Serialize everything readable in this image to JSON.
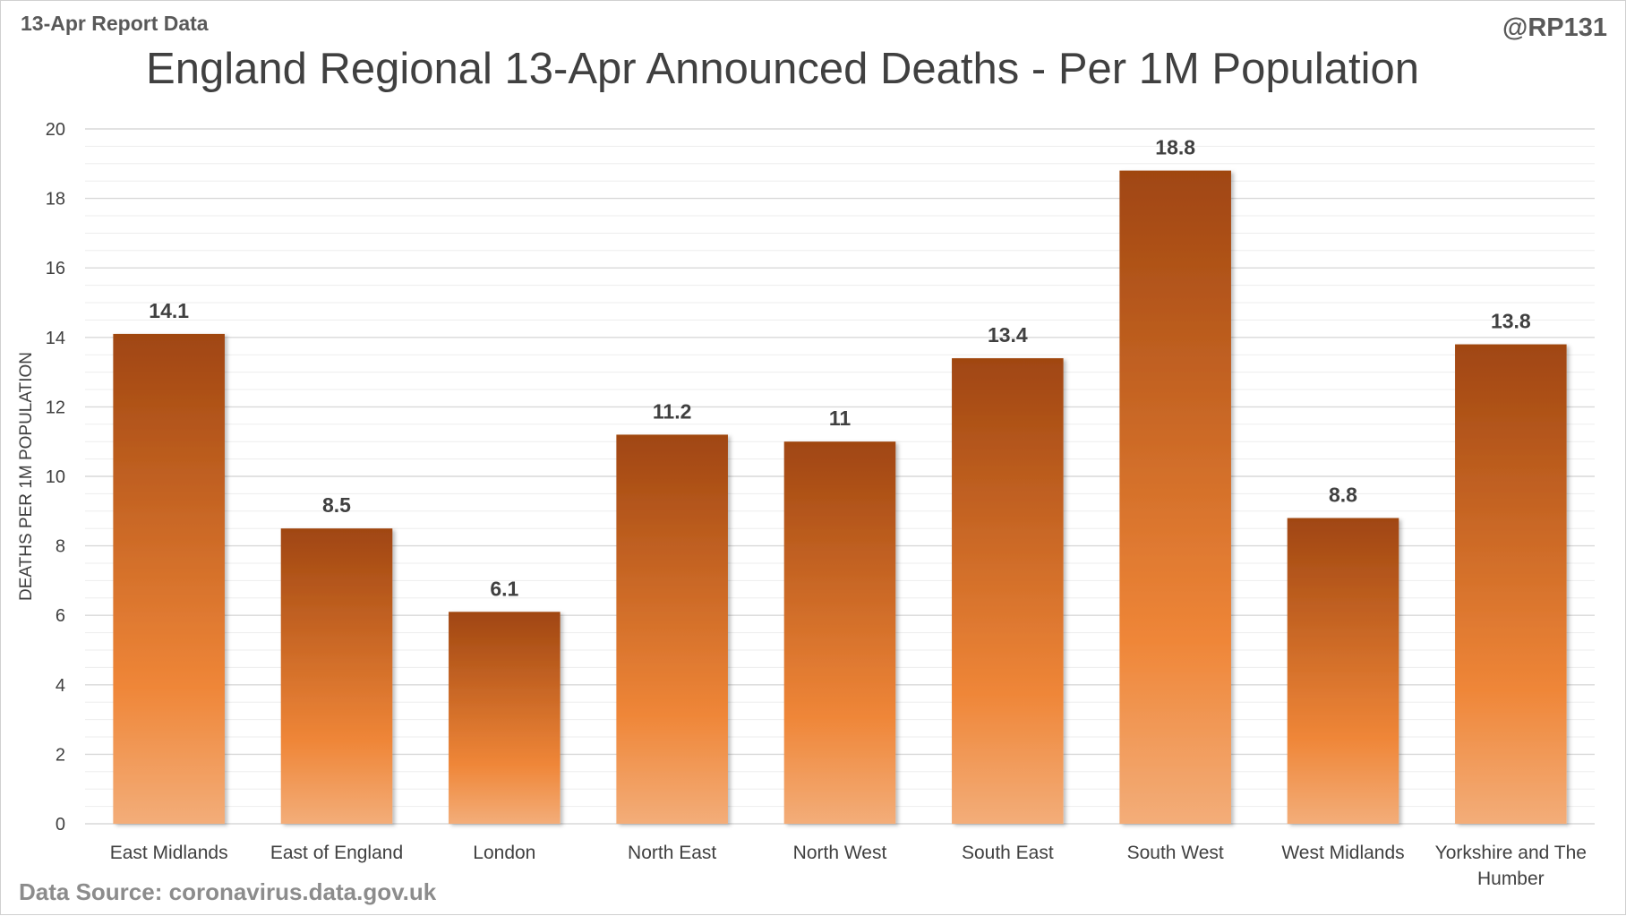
{
  "header": {
    "report_label": "13-Apr Report Data",
    "handle": "@RP131"
  },
  "footer": {
    "source": "Data Source: coronavirus.data.gov.uk"
  },
  "colors": {
    "bar_top": "#a04611",
    "bar_mid": "#ef8638",
    "bar_bottom": "#f3ad79",
    "grid_major": "#d9d9d9",
    "grid_minor": "#ededed",
    "text": "#404040"
  },
  "chart_data": {
    "type": "bar",
    "title": "England Regional 13-Apr Announced Deaths - Per 1M Population",
    "xlabel": "",
    "ylabel": "DEATHS PER 1M POPULATION",
    "ylim": [
      0,
      20
    ],
    "yticks": [
      0,
      2,
      4,
      6,
      8,
      10,
      12,
      14,
      16,
      18,
      20
    ],
    "grid": true,
    "legend": "none",
    "categories": [
      "East Midlands",
      "East of England",
      "London",
      "North East",
      "North West",
      "South East",
      "South West",
      "West Midlands",
      "Yorkshire and The Humber"
    ],
    "values": [
      14.1,
      8.5,
      6.1,
      11.2,
      11,
      13.4,
      18.8,
      8.8,
      13.8
    ]
  }
}
